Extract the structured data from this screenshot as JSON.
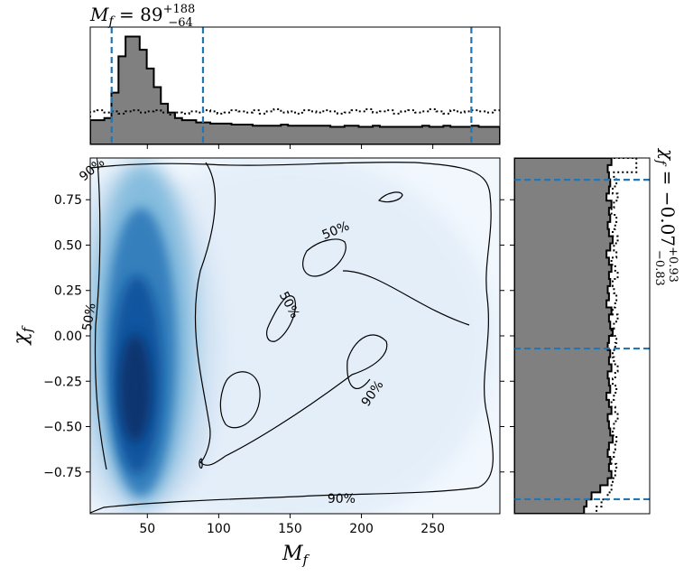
{
  "chart_data": [
    {
      "type": "heatmap",
      "panel": "joint",
      "xlabel": "M_f",
      "ylabel": "χ_f",
      "xlim": [
        10,
        297
      ],
      "ylim": [
        -0.98,
        0.98
      ],
      "xticks": [
        50,
        100,
        150,
        200,
        250
      ],
      "yticks": [
        0.75,
        0.5,
        0.25,
        0.0,
        -0.25,
        -0.5,
        -0.75
      ],
      "xtick_labels": [
        "50",
        "100",
        "150",
        "200",
        "250"
      ],
      "ytick_labels": [
        "0.75",
        "0.50",
        "0.25",
        "0.00",
        "−0.25",
        "−0.50",
        "−0.75"
      ],
      "colormap": "Blues",
      "density_peak": {
        "x": 42,
        "y": -0.3
      },
      "contour_labels": [
        {
          "text": "50%",
          "x": 183,
          "y": 0.56,
          "angle": -22
        },
        {
          "text": "50%",
          "x": 147,
          "y": 0.16,
          "angle": 62
        },
        {
          "text": "90%",
          "x": 210,
          "y": -0.33,
          "angle": -55
        },
        {
          "text": "90%",
          "x": 186,
          "y": -0.92,
          "angle": 0
        },
        {
          "text": "50%",
          "x": 12,
          "y": 0.1,
          "angle": -80
        },
        {
          "text": "90%",
          "x": 13,
          "y": 0.9,
          "angle": -40
        }
      ],
      "colors": {
        "contour": "#000000",
        "low": "#f7fbff",
        "high": "#08306b"
      }
    },
    {
      "type": "bar",
      "panel": "top-marginal",
      "title": "M_f = 89^{+188}_{-64}",
      "x_range": [
        10,
        297
      ],
      "bin_width": 5,
      "series": [
        {
          "style": "filled-step",
          "color": "#808080",
          "values": [
            0.22,
            0.22,
            0.24,
            0.47,
            0.8,
            0.98,
            0.98,
            0.86,
            0.69,
            0.52,
            0.37,
            0.29,
            0.24,
            0.22,
            0.22,
            0.2,
            0.2,
            0.19,
            0.19,
            0.19,
            0.18,
            0.18,
            0.18,
            0.17,
            0.17,
            0.17,
            0.17,
            0.18,
            0.17,
            0.17,
            0.17,
            0.17,
            0.17,
            0.17,
            0.16,
            0.16,
            0.17,
            0.17,
            0.16,
            0.16,
            0.17,
            0.16,
            0.16,
            0.16,
            0.16,
            0.16,
            0.16,
            0.17,
            0.16,
            0.16,
            0.17,
            0.16,
            0.16,
            0.16,
            0.17,
            0.16,
            0.16,
            0.16
          ]
        },
        {
          "style": "dotted-step",
          "color": "#000000",
          "values": [
            0.3,
            0.31,
            0.29,
            0.3,
            0.28,
            0.3,
            0.31,
            0.29,
            0.3,
            0.31,
            0.29,
            0.27,
            0.29,
            0.28,
            0.3,
            0.29,
            0.31,
            0.3,
            0.28,
            0.29,
            0.31,
            0.3,
            0.29,
            0.31,
            0.28,
            0.3,
            0.32,
            0.29,
            0.3,
            0.28,
            0.31,
            0.3,
            0.29,
            0.31,
            0.3,
            0.28,
            0.29,
            0.31,
            0.3,
            0.32,
            0.29,
            0.3,
            0.31,
            0.28,
            0.3,
            0.31,
            0.29,
            0.3,
            0.32,
            0.3,
            0.28,
            0.31,
            0.29,
            0.3,
            0.31,
            0.3,
            0.29,
            0.31
          ]
        }
      ],
      "vlines": [
        25,
        89,
        277
      ],
      "vline_color": "#1f77b4"
    },
    {
      "type": "bar",
      "panel": "right-marginal",
      "orientation": "horizontal",
      "title": "χ_f = −0.07^{+0.93}_{−0.83}",
      "y_range": [
        -0.98,
        0.98
      ],
      "series": [
        {
          "style": "filled-step",
          "color": "#808080",
          "values": [
            0.78,
            0.75,
            0.76,
            0.77,
            0.76,
            0.74,
            0.78,
            0.76,
            0.77,
            0.75,
            0.76,
            0.79,
            0.77,
            0.74,
            0.76,
            0.78,
            0.76,
            0.77,
            0.75,
            0.76,
            0.74,
            0.78,
            0.76,
            0.77,
            0.79,
            0.76,
            0.75,
            0.77,
            0.76,
            0.78,
            0.75,
            0.76,
            0.77,
            0.74,
            0.76,
            0.78,
            0.75,
            0.76,
            0.77,
            0.79,
            0.76,
            0.75,
            0.77,
            0.76,
            0.78,
            0.75,
            0.69,
            0.62,
            0.58,
            0.56
          ]
        },
        {
          "style": "dotted-step",
          "color": "#000000",
          "values": [
            0.98,
            0.98,
            0.8,
            0.82,
            0.79,
            0.83,
            0.8,
            0.78,
            0.82,
            0.81,
            0.79,
            0.83,
            0.8,
            0.82,
            0.78,
            0.81,
            0.83,
            0.79,
            0.8,
            0.82,
            0.81,
            0.79,
            0.83,
            0.8,
            0.78,
            0.82,
            0.81,
            0.79,
            0.8,
            0.83,
            0.81,
            0.79,
            0.82,
            0.8,
            0.78,
            0.81,
            0.83,
            0.8,
            0.79,
            0.82,
            0.81,
            0.8,
            0.78,
            0.82,
            0.81,
            0.79,
            0.78,
            0.75,
            0.7,
            0.66
          ]
        }
      ],
      "hlines": [
        -0.9,
        -0.07,
        0.86
      ],
      "hline_color": "#1f77b4"
    }
  ]
}
